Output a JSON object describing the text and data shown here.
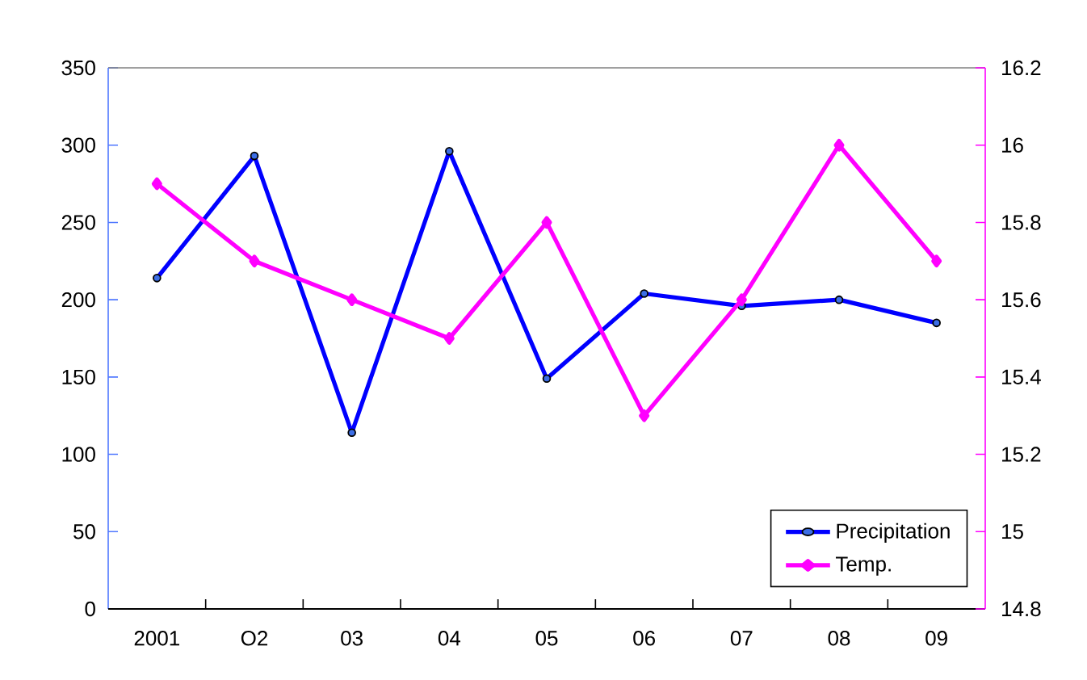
{
  "chart_data": {
    "type": "line",
    "categories": [
      "2001",
      "O2",
      "03",
      "04",
      "05",
      "06",
      "07",
      "08",
      "09"
    ],
    "series": [
      {
        "name": "Precipitation",
        "color": "#0000ff",
        "marker": "circle",
        "values": [
          214,
          293,
          114,
          296,
          149,
          204,
          196,
          200,
          185
        ]
      },
      {
        "name": "Temp.",
        "color": "#ff00ff",
        "marker": "diamond",
        "axis": "y2",
        "values": [
          15.9,
          15.7,
          15.6,
          15.5,
          15.8,
          15.3,
          15.6,
          16.0,
          15.7
        ]
      }
    ],
    "ylim": [
      0,
      350
    ],
    "yticks": [
      0,
      50,
      100,
      150,
      200,
      250,
      300,
      350
    ],
    "y2lim": [
      14.8,
      16.2
    ],
    "y2ticks": [
      14.8,
      15,
      15.2,
      15.4,
      15.6,
      15.8,
      16,
      16.2
    ],
    "grid": false,
    "legend": "bottom right",
    "line_style": "solid"
  }
}
